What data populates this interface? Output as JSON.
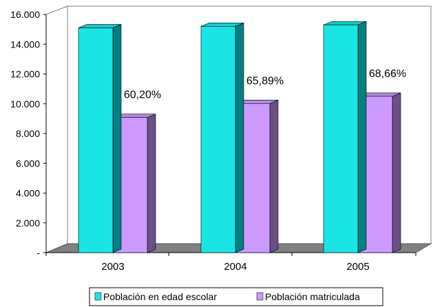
{
  "chart_data": {
    "type": "bar",
    "categories": [
      "2003",
      "2004",
      "2005"
    ],
    "series": [
      {
        "name": "Población en edad escolar",
        "values": [
          15100,
          15200,
          15300
        ],
        "color": "#19E5E5"
      },
      {
        "name": "Población matriculada",
        "values": [
          9080,
          10020,
          10500
        ],
        "color": "#CC99FF"
      }
    ],
    "data_labels": [
      "60,20%",
      "65,89%",
      "68,66%"
    ],
    "yticks": [
      "-",
      "2.000",
      "4.000",
      "6.000",
      "8.000",
      "10.000",
      "12.000",
      "14.000",
      "16.000"
    ],
    "ylim": [
      0,
      16000
    ],
    "title": "",
    "xlabel": "",
    "ylabel": "",
    "grid": false,
    "legend": "bottom",
    "style": "3d-bar"
  }
}
